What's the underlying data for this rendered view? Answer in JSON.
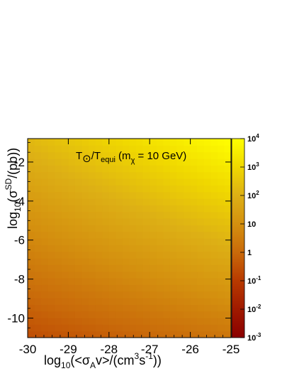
{
  "chart_data": {
    "type": "heatmap",
    "title": "",
    "annotation": {
      "text_T": "T",
      "sun_symbol": "⊙",
      "text_slash": "/T",
      "text_sub": "equi",
      "text_mid": " (m",
      "text_chi": "χ",
      "text_end": " = 10 GeV)"
    },
    "xlabel": {
      "pre": "log",
      "sub": "10",
      "mid": "(<σ",
      "sub2": "A",
      "mid2": "v>/(cm",
      "sup": "3",
      "mid3": "s",
      "sup2": "-1",
      "post": "))"
    },
    "ylabel": {
      "pre": "log",
      "sub": "10",
      "mid": "(σ",
      "sup": "SD",
      "post": "/(pb))"
    },
    "xlim": [
      -30,
      -25
    ],
    "ylim": [
      -11,
      -0.8
    ],
    "x_ticks": [
      -30,
      -29,
      -28,
      -27,
      -26,
      -25
    ],
    "x_tick_labels": [
      "-30",
      "-29",
      "-28",
      "-27",
      "-26",
      "-25"
    ],
    "y_ticks": [
      -10,
      -8,
      -6,
      -4,
      -2
    ],
    "y_tick_labels": [
      "-10",
      "-8",
      "-6",
      "-4",
      "-2"
    ],
    "colorbar": {
      "scale": "log",
      "range": [
        0.001,
        10000
      ],
      "ticks": [
        {
          "base": "10",
          "exp": "-3",
          "value": 0.001
        },
        {
          "base": "10",
          "exp": "-2",
          "value": 0.01
        },
        {
          "base": "10",
          "exp": "-1",
          "value": 0.1
        },
        {
          "base": "1",
          "exp": "",
          "value": 1
        },
        {
          "base": "10",
          "exp": "",
          "value": 10
        },
        {
          "base": "10",
          "exp": "2",
          "value": 100
        },
        {
          "base": "10",
          "exp": "3",
          "value": 1000
        },
        {
          "base": "10",
          "exp": "4",
          "value": 10000
        }
      ],
      "colors": [
        "#8b0000",
        "#a01a00",
        "#b83a00",
        "#c96a0a",
        "#d4900f",
        "#ddb015",
        "#f0d800",
        "#ffff00"
      ]
    },
    "field": {
      "description_values_log10_corners": {
        "x_min_y_min": -0.6,
        "x_max_y_min": 0.3,
        "x_min_y_max": 2.2,
        "x_max_y_max": 4.0
      }
    },
    "grid": false
  }
}
